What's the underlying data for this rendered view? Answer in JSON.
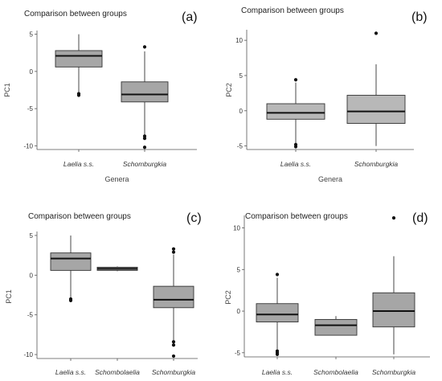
{
  "chart_data": [
    {
      "type": "box",
      "panel_label": "(a)",
      "title": "Comparison between groups",
      "xlabel": "Genera",
      "ylabel": "PC1",
      "ylim": [
        -10.5,
        5.5
      ],
      "yticks": [
        5,
        0,
        -5,
        -10
      ],
      "categories": [
        "Laelia s.s.",
        "Schomburgkia"
      ],
      "boxes": [
        {
          "min": -3.0,
          "q1": 0.6,
          "median": 2.1,
          "q3": 2.8,
          "max": 5.0,
          "outliers": [
            -3.0,
            -3.2
          ]
        },
        {
          "min": -8.6,
          "q1": -4.1,
          "median": -3.1,
          "q3": -1.4,
          "max": 2.7,
          "outliers": [
            3.3,
            -8.7,
            -9.0,
            -10.2
          ]
        }
      ],
      "box_fill": "#a6a6a6"
    },
    {
      "type": "box",
      "panel_label": "(b)",
      "title": "Comparison between groups",
      "xlabel": "Genera",
      "ylabel": "PC2",
      "ylim": [
        -5.5,
        11.5
      ],
      "yticks": [
        10,
        5,
        0,
        -5
      ],
      "categories": [
        "Laelia s.s.",
        "Schomburgkia"
      ],
      "boxes": [
        {
          "min": -4.6,
          "q1": -1.2,
          "median": -0.3,
          "q3": 1.0,
          "max": 4.0,
          "outliers": [
            4.4,
            -4.8,
            -5.1
          ]
        },
        {
          "min": -5.0,
          "q1": -1.8,
          "median": -0.1,
          "q3": 2.2,
          "max": 6.6,
          "outliers": [
            11.0
          ]
        }
      ],
      "box_fill": "#b8b8b8"
    },
    {
      "type": "box",
      "panel_label": "(c)",
      "title": "Comparison between groups",
      "xlabel": "",
      "ylabel": "PC1",
      "ylim": [
        -10.5,
        5.5
      ],
      "yticks": [
        5,
        0,
        -5,
        -10
      ],
      "categories": [
        "Laelia s.s.",
        "Schombolaelia",
        "Schomburgkia"
      ],
      "boxes": [
        {
          "min": -3.0,
          "q1": 0.6,
          "median": 2.1,
          "q3": 2.8,
          "max": 5.0,
          "outliers": [
            -3.0,
            -3.2
          ]
        },
        {
          "min": 0.5,
          "q1": 0.6,
          "median": 0.8,
          "q3": 1.0,
          "max": 1.1,
          "outliers": []
        },
        {
          "min": -8.2,
          "q1": -4.1,
          "median": -3.1,
          "q3": -1.4,
          "max": 2.6,
          "outliers": [
            3.3,
            2.9,
            -8.4,
            -8.8,
            -10.2
          ]
        }
      ],
      "box_fill": "#a6a6a6"
    },
    {
      "type": "box",
      "panel_label": "(d)",
      "title": "Comparison between groups",
      "xlabel": "",
      "ylabel": "PC2",
      "ylim": [
        -5.5,
        11.5
      ],
      "yticks": [
        10,
        5,
        0,
        -5
      ],
      "categories": [
        "Laelia s.s.",
        "Schombolaelia",
        "Schomburgkia"
      ],
      "boxes": [
        {
          "min": -4.6,
          "q1": -1.3,
          "median": -0.4,
          "q3": 0.9,
          "max": 4.0,
          "outliers": [
            4.4,
            -4.8,
            -5.0,
            -5.2
          ]
        },
        {
          "min": -2.9,
          "q1": -2.9,
          "median": -1.7,
          "q3": -1.0,
          "max": -0.6,
          "outliers": []
        },
        {
          "min": -5.2,
          "q1": -1.9,
          "median": 0.0,
          "q3": 2.2,
          "max": 6.6,
          "outliers": [
            11.2
          ]
        }
      ],
      "box_fill": "#a6a6a6"
    }
  ]
}
